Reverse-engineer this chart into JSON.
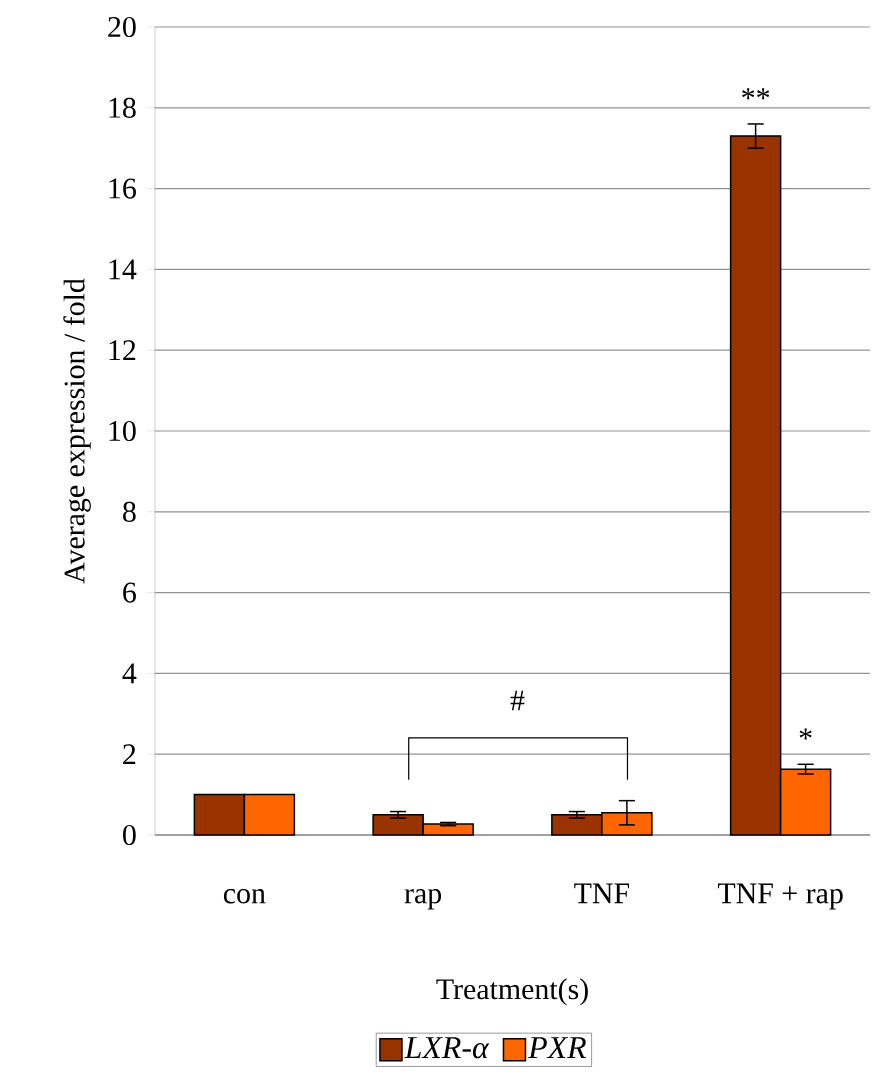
{
  "chart_data": {
    "type": "bar",
    "xlabel": "Treatment(s)",
    "ylabel": "Average expression / fold",
    "categories": [
      "con",
      "rap",
      "TNF",
      "TNF + rap"
    ],
    "series": [
      {
        "name": "LXR-α",
        "color": "#993300",
        "values": [
          1,
          0.5,
          0.5,
          17.3
        ],
        "errors": [
          null,
          0.08,
          0.08,
          0.3
        ]
      },
      {
        "name": "PXR",
        "color": "#ff6600",
        "values": [
          1,
          0.27,
          0.55,
          1.63
        ],
        "errors": [
          null,
          0.04,
          0.3,
          0.12
        ]
      }
    ],
    "ylim": [
      0,
      20
    ],
    "yticks": [
      0,
      2,
      4,
      6,
      8,
      10,
      12,
      14,
      16,
      18,
      20
    ],
    "grid": "y",
    "legend": "bottom",
    "annotations": [
      "#",
      "**",
      "*"
    ]
  }
}
